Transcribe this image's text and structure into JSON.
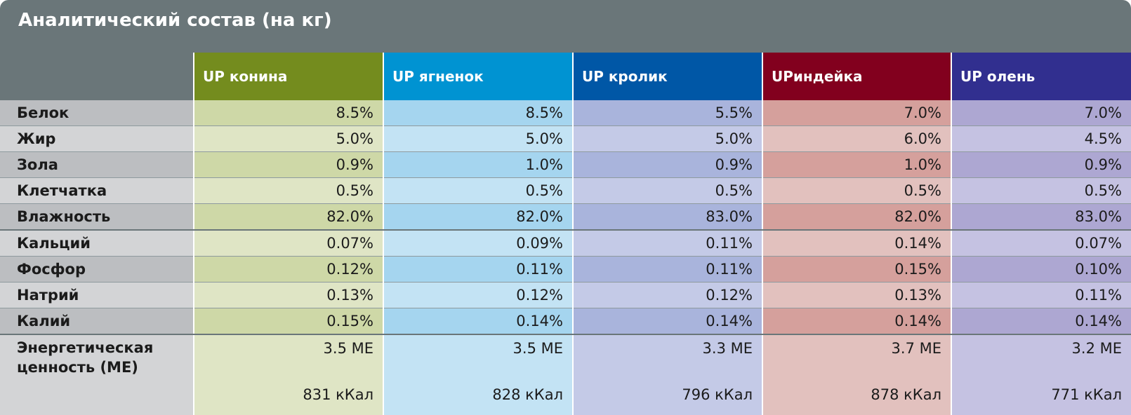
{
  "title": "Аналитический состав (на кг)",
  "colors": {
    "header_bg": "#6a7679",
    "products": {
      "konina": {
        "header": "#748c1e",
        "dark": "#ced8a7",
        "light": "#dfe5c5"
      },
      "yagnenok": {
        "header": "#0093d2",
        "dark": "#a5d5ef",
        "light": "#c3e3f4"
      },
      "krolik": {
        "header": "#0057a6",
        "dark": "#a9b4dc",
        "light": "#c4cae7"
      },
      "indeyka": {
        "header": "#82001e",
        "dark": "#d5a09c",
        "light": "#e2c1be"
      },
      "olen": {
        "header": "#312f8f",
        "dark": "#ada7d2",
        "light": "#c5c2e2"
      }
    }
  },
  "products": [
    "UP конина",
    "UP ягненок",
    "UP кролик",
    "UPиндейка",
    "UP олень"
  ],
  "rows": [
    {
      "label": "Белок",
      "values": [
        "8.5%",
        "8.5%",
        "5.5%",
        "7.0%",
        "7.0%"
      ]
    },
    {
      "label": "Жир",
      "values": [
        "5.0%",
        "5.0%",
        "5.0%",
        "6.0%",
        "4.5%"
      ]
    },
    {
      "label": "Зола",
      "values": [
        "0.9%",
        "1.0%",
        "0.9%",
        "1.0%",
        "0.9%"
      ]
    },
    {
      "label": "Клетчатка",
      "values": [
        "0.5%",
        "0.5%",
        "0.5%",
        "0.5%",
        "0.5%"
      ]
    },
    {
      "label": "Влажность",
      "values": [
        "82.0%",
        "82.0%",
        "83.0%",
        "82.0%",
        "83.0%"
      ]
    },
    {
      "label": "Кальций",
      "values": [
        "0.07%",
        "0.09%",
        "0.11%",
        "0.14%",
        "0.07%"
      ]
    },
    {
      "label": "Фосфор",
      "values": [
        "0.12%",
        "0.11%",
        "0.11%",
        "0.15%",
        "0.10%"
      ]
    },
    {
      "label": "Натрий",
      "values": [
        "0.13%",
        "0.12%",
        "0.12%",
        "0.13%",
        "0.11%"
      ]
    },
    {
      "label": "Калий",
      "values": [
        "0.15%",
        "0.14%",
        "0.14%",
        "0.14%",
        "0.14%"
      ]
    }
  ],
  "energy": {
    "label_line1": "Энергетическая",
    "label_line2": "ценность (МЕ)",
    "me": [
      "3.5 ME",
      "3.5 ME",
      "3.3 ME",
      "3.7 ME",
      "3.2 ME"
    ],
    "kcal": [
      "831 кКал",
      "828 кКал",
      "796 кКал",
      "878 кКал",
      "771 кКал"
    ]
  }
}
